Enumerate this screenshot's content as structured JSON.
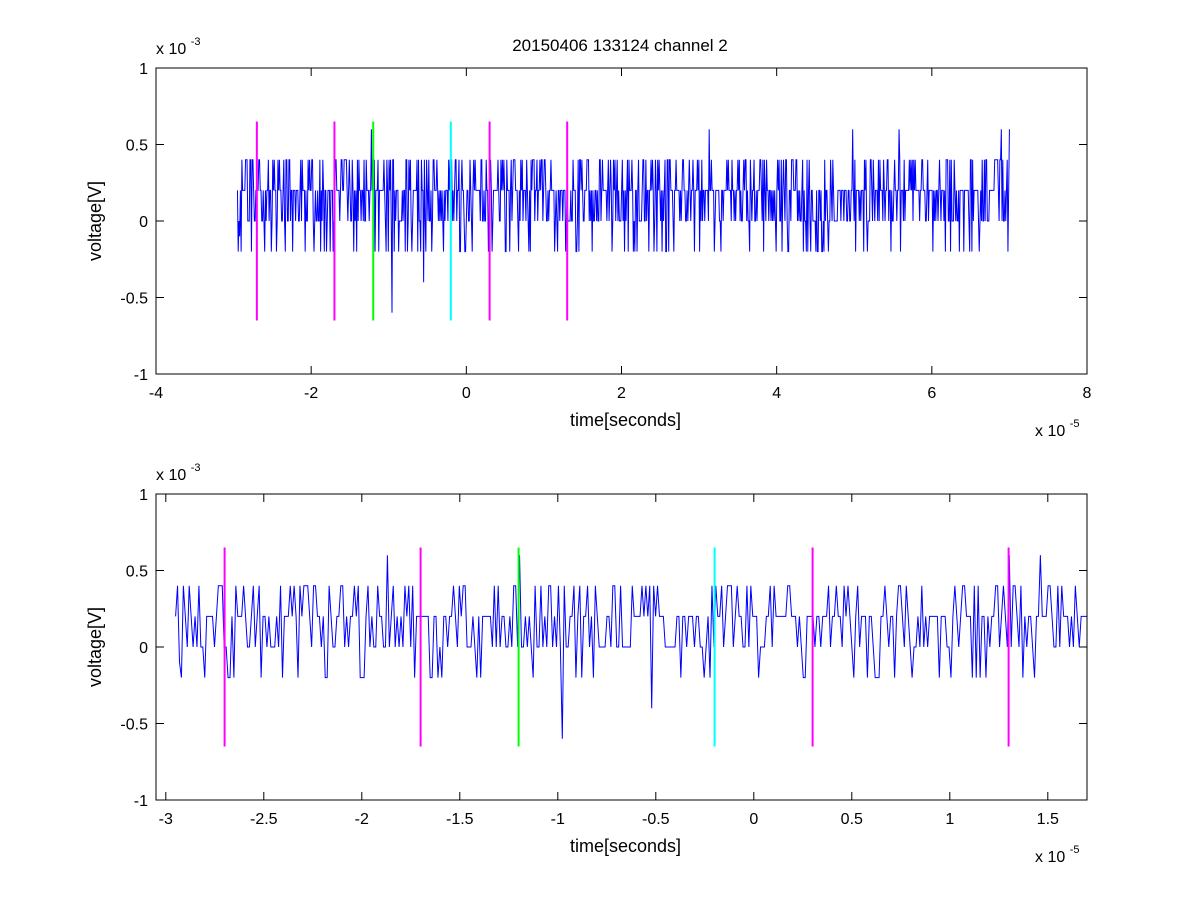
{
  "figure_title": "20150406 133124 channel 2",
  "colors": {
    "background": "#ffffff",
    "axes": "#000000",
    "signal": "#0000ff",
    "magenta": "#ff00ff",
    "green": "#00ff00",
    "cyan": "#00ffff"
  },
  "chart_data": [
    {
      "type": "line",
      "title": "20150406 133124 channel 2",
      "xlabel": "time[seconds]",
      "ylabel": "voltage[V]",
      "x_multiplier": "x 10",
      "x_exponent": "-5",
      "y_multiplier": "x 10",
      "y_exponent": "-3",
      "xlim": [
        -4,
        8
      ],
      "ylim": [
        -1,
        1
      ],
      "xticks": [
        -4,
        -2,
        0,
        2,
        4,
        6,
        8
      ],
      "xtick_labels": [
        "-4",
        "-2",
        "0",
        "2",
        "4",
        "6",
        "8"
      ],
      "yticks": [
        -1,
        -0.5,
        0,
        0.5,
        1
      ],
      "ytick_labels": [
        "-1",
        "-0.5",
        "0",
        "0.5",
        "1"
      ],
      "grid": false,
      "signal_seed": 7,
      "series": [
        {
          "color": "#0000ff",
          "x_start": -2.95,
          "x_end": 7.0,
          "samples": 1050,
          "baseline": 0.2,
          "levels": [
            -0.6,
            -0.4,
            -0.2,
            0,
            0.2,
            0.4,
            0.6
          ],
          "key_points": [
            {
              "x": -2.95,
              "y": 0.2
            },
            {
              "x": -2.92,
              "y": -0.1
            },
            {
              "x": -2.9,
              "y": -0.2
            },
            {
              "x": -2.85,
              "y": 0.4
            },
            {
              "x": -1.22,
              "y": 0.6
            },
            {
              "x": -0.96,
              "y": -0.6
            },
            {
              "x": -0.55,
              "y": -0.4
            },
            {
              "x": 3.13,
              "y": 0.6
            },
            {
              "x": 4.98,
              "y": 0.6
            },
            {
              "x": 5.58,
              "y": 0.6
            },
            {
              "x": 6.9,
              "y": 0.6
            },
            {
              "x": 7.0,
              "y": 0.6
            }
          ]
        }
      ],
      "event_markers": [
        {
          "x": -2.7,
          "color": "magenta",
          "ymin": -0.65,
          "ymax": 0.65
        },
        {
          "x": -1.7,
          "color": "magenta",
          "ymin": -0.65,
          "ymax": 0.65
        },
        {
          "x": -1.2,
          "color": "green",
          "ymin": -0.65,
          "ymax": 0.65
        },
        {
          "x": -0.2,
          "color": "cyan",
          "ymin": -0.65,
          "ymax": 0.65
        },
        {
          "x": 0.3,
          "color": "magenta",
          "ymin": -0.65,
          "ymax": 0.65
        },
        {
          "x": 1.3,
          "color": "magenta",
          "ymin": -0.65,
          "ymax": 0.65
        }
      ]
    },
    {
      "type": "line",
      "title": "",
      "xlabel": "time[seconds]",
      "ylabel": "voltage[V]",
      "x_multiplier": "x 10",
      "x_exponent": "-5",
      "y_multiplier": "x 10",
      "y_exponent": "-3",
      "xlim": [
        -3.05,
        1.7
      ],
      "ylim": [
        -1,
        1
      ],
      "xticks": [
        -3,
        -2.5,
        -2,
        -1.5,
        -1,
        -0.5,
        0,
        0.5,
        1,
        1.5
      ],
      "xtick_labels": [
        "-3",
        "-2.5",
        "-2",
        "-1.5",
        "-1",
        "-0.5",
        "0",
        "0.5",
        "1",
        "1.5"
      ],
      "yticks": [
        -1,
        -0.5,
        0,
        0.5,
        1
      ],
      "ytick_labels": [
        "-1",
        "-0.5",
        "0",
        "0.5",
        "1"
      ],
      "grid": false,
      "signal_seed": 3,
      "series": [
        {
          "color": "#0000ff",
          "x_start": -2.95,
          "x_end": 1.7,
          "samples": 470,
          "baseline": 0.2,
          "levels": [
            -0.6,
            -0.4,
            -0.2,
            0,
            0.2,
            0.4,
            0.6
          ],
          "key_points": [
            {
              "x": -2.95,
              "y": 0.2
            },
            {
              "x": -2.93,
              "y": -0.1
            },
            {
              "x": -2.92,
              "y": -0.2
            },
            {
              "x": -2.9,
              "y": 0.2
            },
            {
              "x": -2.88,
              "y": 0.4
            },
            {
              "x": -2.65,
              "y": -0.2
            },
            {
              "x": -1.87,
              "y": 0.6
            },
            {
              "x": -1.2,
              "y": 0.6
            },
            {
              "x": -0.98,
              "y": -0.6
            },
            {
              "x": -0.52,
              "y": -0.4
            },
            {
              "x": -0.25,
              "y": -0.2
            },
            {
              "x": 0.95,
              "y": -0.2
            },
            {
              "x": 1.3,
              "y": 0.6
            },
            {
              "x": 1.46,
              "y": 0.6
            },
            {
              "x": 1.7,
              "y": 0.2
            }
          ]
        }
      ],
      "event_markers": [
        {
          "x": -2.7,
          "color": "magenta",
          "ymin": -0.65,
          "ymax": 0.65
        },
        {
          "x": -1.7,
          "color": "magenta",
          "ymin": -0.65,
          "ymax": 0.65
        },
        {
          "x": -1.2,
          "color": "green",
          "ymin": -0.65,
          "ymax": 0.65
        },
        {
          "x": -0.2,
          "color": "cyan",
          "ymin": -0.65,
          "ymax": 0.65
        },
        {
          "x": 0.3,
          "color": "magenta",
          "ymin": -0.65,
          "ymax": 0.65
        },
        {
          "x": 1.3,
          "color": "magenta",
          "ymin": -0.65,
          "ymax": 0.65
        }
      ]
    }
  ]
}
